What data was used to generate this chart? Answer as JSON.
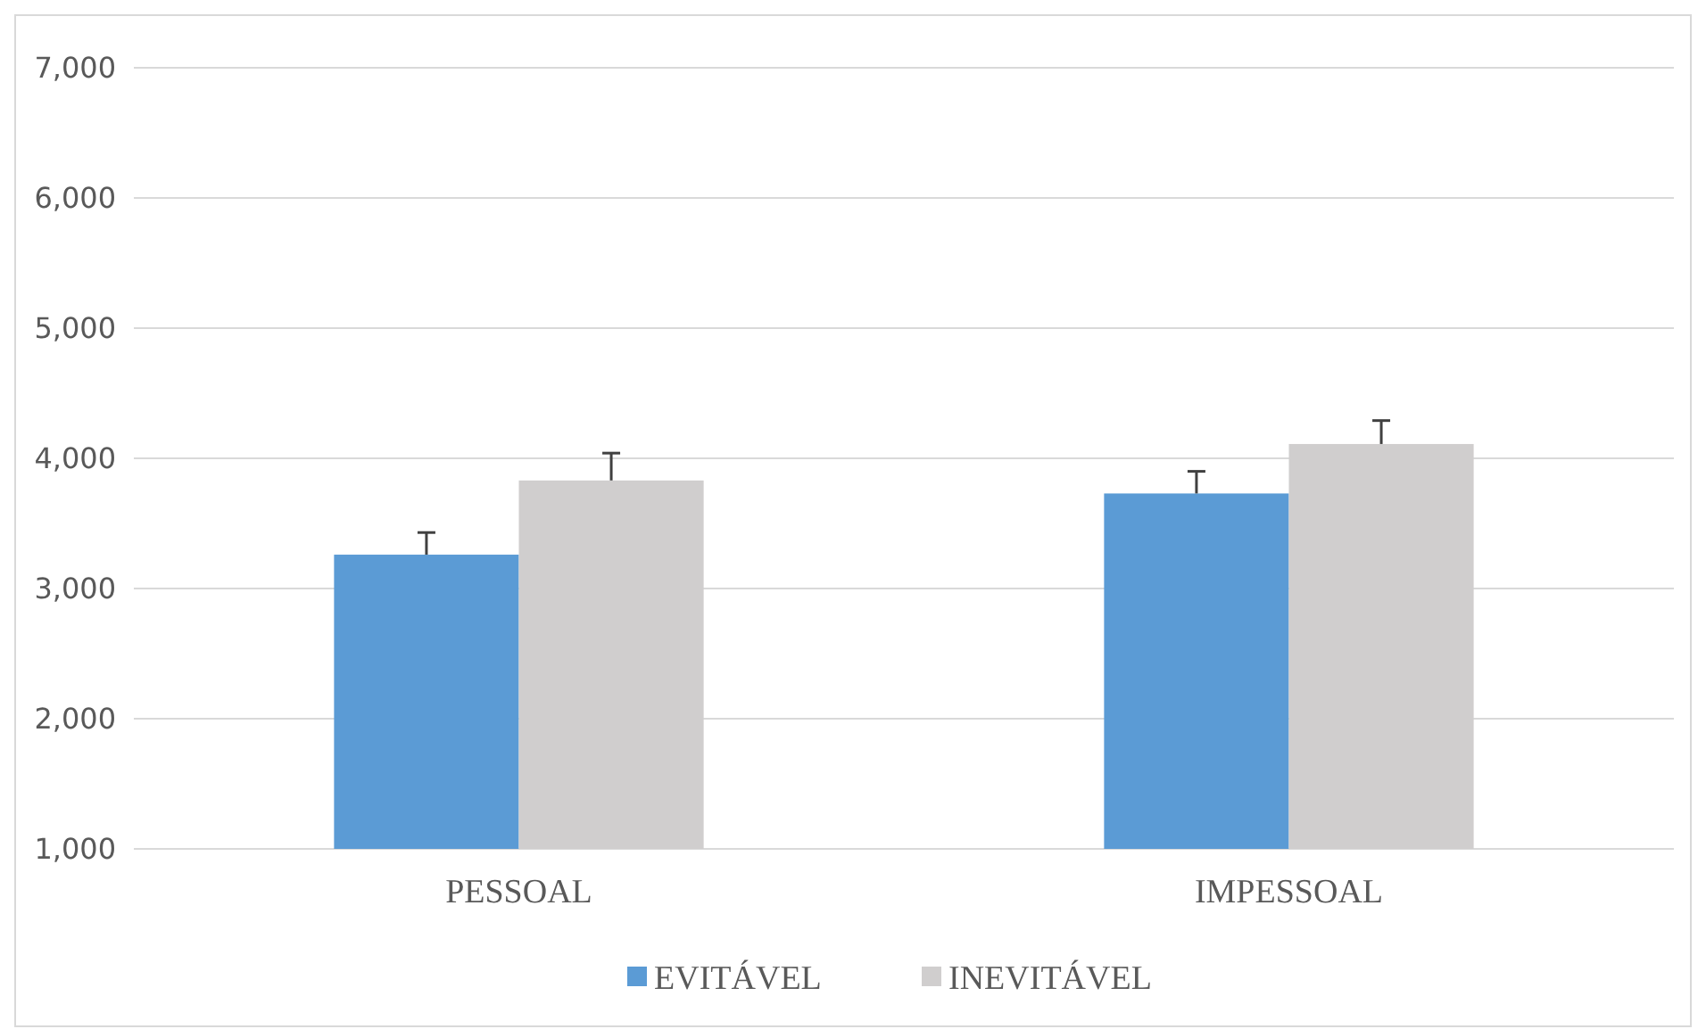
{
  "chart_data": {
    "type": "bar",
    "categories": [
      "PESSOAL",
      "IMPESSOAL"
    ],
    "series": [
      {
        "name": "EVITÁVEL",
        "color": "#5b9bd5",
        "values": [
          3260,
          3730
        ],
        "errors": [
          [
            3260,
            3430
          ],
          [
            3730,
            3900
          ]
        ]
      },
      {
        "name": "INEVITÁVEL",
        "color": "#d0cece",
        "values": [
          3830,
          4110
        ],
        "errors": [
          [
            3830,
            4040
          ],
          [
            4110,
            4290
          ]
        ]
      }
    ],
    "ylim": [
      1000,
      7000
    ],
    "yticks": [
      {
        "value": 1000,
        "label": "1,000"
      },
      {
        "value": 2000,
        "label": "2,000"
      },
      {
        "value": 3000,
        "label": "3,000"
      },
      {
        "value": 4000,
        "label": "4,000"
      },
      {
        "value": 5000,
        "label": "5,000"
      },
      {
        "value": 6000,
        "label": "6,000"
      },
      {
        "value": 7000,
        "label": "7,000"
      }
    ],
    "grid": "y",
    "legend": "bottom"
  }
}
